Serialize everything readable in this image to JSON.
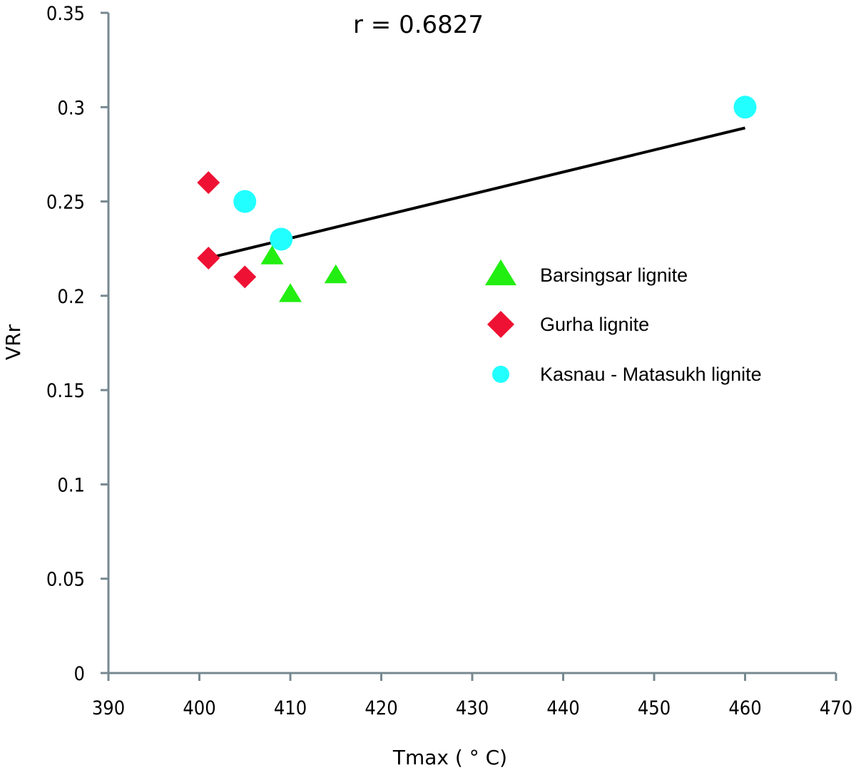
{
  "chart_data": {
    "type": "scatter",
    "title": "",
    "annotation": "r = 0.6827",
    "xlabel": "Tmax ( ° C)",
    "ylabel": "VRr",
    "xlim": [
      390,
      470
    ],
    "ylim": [
      0,
      0.35
    ],
    "xticks": [
      "390",
      "400",
      "410",
      "420",
      "430",
      "440",
      "450",
      "460",
      "470"
    ],
    "yticks": [
      "0",
      "0.05",
      "0.1",
      "0.15",
      "0.2",
      "0.25",
      "0.3",
      "0.35"
    ],
    "grid": false,
    "legend_position": "right-middle",
    "series": [
      {
        "name": "Barsingsar lignite",
        "marker": "triangle",
        "color": "#22ee11",
        "points": [
          [
            408,
            0.22
          ],
          [
            410,
            0.2
          ],
          [
            415,
            0.21
          ]
        ]
      },
      {
        "name": "Gurha lignite",
        "marker": "diamond",
        "color": "#ee1133",
        "points": [
          [
            401,
            0.26
          ],
          [
            401,
            0.22
          ],
          [
            405,
            0.21
          ]
        ]
      },
      {
        "name": "Kasnau - Matasukh lignite",
        "marker": "circle",
        "color": "#22ffff",
        "points": [
          [
            405,
            0.25
          ],
          [
            409,
            0.23
          ],
          [
            460,
            0.3
          ]
        ]
      }
    ],
    "trendline": {
      "color": "#000000",
      "from": [
        401,
        0.22
      ],
      "to": [
        460,
        0.289
      ]
    }
  }
}
